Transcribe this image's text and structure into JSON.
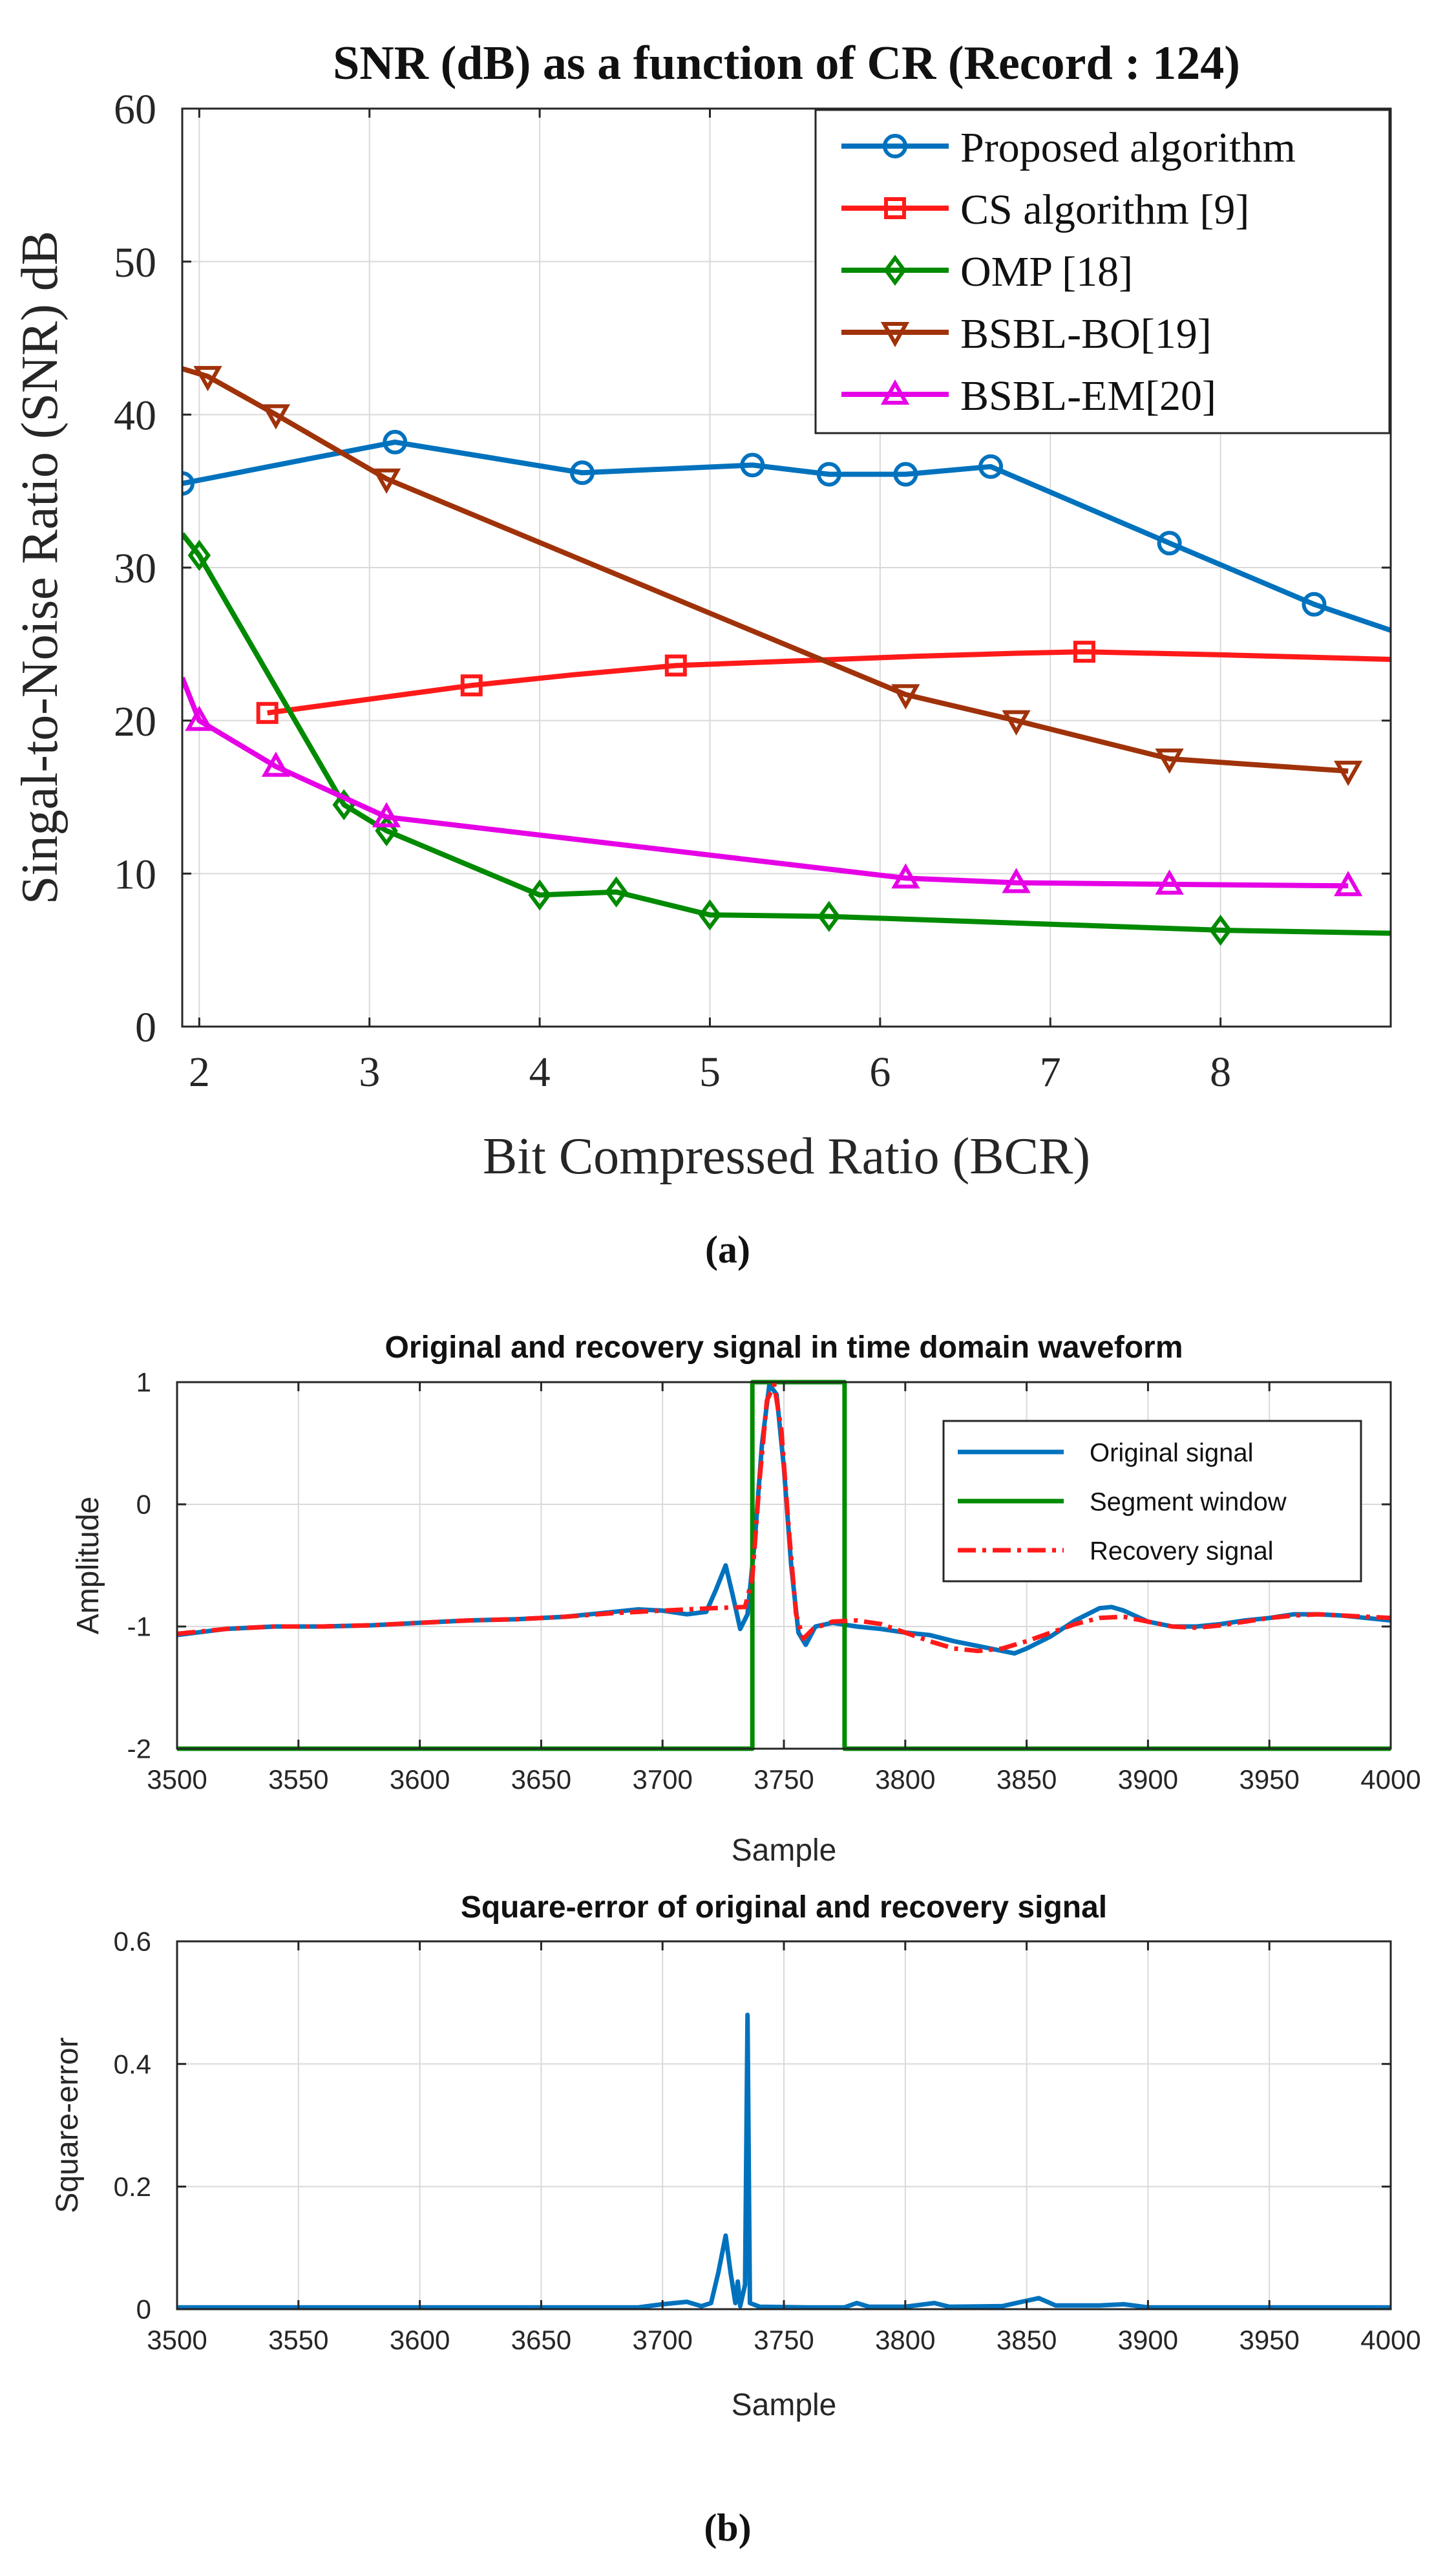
{
  "captions": {
    "a": "(a)",
    "b": "(b)"
  },
  "chart_data": [
    {
      "type": "line",
      "title": "SNR (dB) as a function of CR (Record : 124)",
      "xlabel": "Bit Compressed Ratio (BCR)",
      "ylabel": "Singal-to-Noise Ratio (SNR) dB",
      "xlim": [
        1.9,
        9
      ],
      "ylim": [
        0,
        60
      ],
      "xticks": [
        2,
        3,
        4,
        5,
        6,
        7,
        8
      ],
      "yticks": [
        0,
        10,
        20,
        30,
        40,
        50,
        60
      ],
      "grid": true,
      "legend_position": "top-right",
      "series": [
        {
          "name": "Proposed algorithm",
          "color": "#0072bd",
          "marker": "circle",
          "line": [
            [
              1.9,
              35.5
            ],
            [
              3.15,
              38.2
            ],
            [
              4.25,
              36.2
            ],
            [
              5.25,
              36.7
            ],
            [
              5.7,
              36.1
            ],
            [
              6.15,
              36.1
            ],
            [
              6.65,
              36.6
            ],
            [
              7.7,
              31.6
            ],
            [
              8.55,
              27.6
            ],
            [
              9,
              25.9
            ]
          ],
          "markers": [
            [
              1.9,
              35.5
            ],
            [
              3.15,
              38.2
            ],
            [
              4.25,
              36.2
            ],
            [
              5.25,
              36.7
            ],
            [
              5.7,
              36.1
            ],
            [
              6.15,
              36.1
            ],
            [
              6.65,
              36.6
            ],
            [
              7.7,
              31.6
            ],
            [
              8.55,
              27.6
            ]
          ]
        },
        {
          "name": "CS algorithm [9]",
          "color": "#ff1a1a",
          "marker": "square",
          "line": [
            [
              2.4,
              20.5
            ],
            [
              3.0,
              21.4
            ],
            [
              3.6,
              22.3
            ],
            [
              4.2,
              23.0
            ],
            [
              4.8,
              23.6
            ],
            [
              5.5,
              23.9
            ],
            [
              6.2,
              24.2
            ],
            [
              6.8,
              24.4
            ],
            [
              7.2,
              24.5
            ],
            [
              8.0,
              24.3
            ],
            [
              9,
              24.0
            ]
          ],
          "markers": [
            [
              2.4,
              20.5
            ],
            [
              3.6,
              22.3
            ],
            [
              4.8,
              23.6
            ],
            [
              7.2,
              24.5
            ]
          ]
        },
        {
          "name": "OMP [18]",
          "color": "#008a00",
          "marker": "diamond",
          "line": [
            [
              1.9,
              32.2
            ],
            [
              2.0,
              30.8
            ],
            [
              2.85,
              14.5
            ],
            [
              3.1,
              12.8
            ],
            [
              4.0,
              8.6
            ],
            [
              4.45,
              8.8
            ],
            [
              5.0,
              7.3
            ],
            [
              5.7,
              7.2
            ],
            [
              8.0,
              6.3
            ],
            [
              9,
              6.1
            ]
          ],
          "markers": [
            [
              2.0,
              30.8
            ],
            [
              2.85,
              14.5
            ],
            [
              3.1,
              12.8
            ],
            [
              4.0,
              8.6
            ],
            [
              4.45,
              8.8
            ],
            [
              5.0,
              7.3
            ],
            [
              5.7,
              7.2
            ],
            [
              8.0,
              6.3
            ]
          ]
        },
        {
          "name": "BSBL-BO[19]",
          "color": "#a0320a",
          "marker": "triangle-down",
          "line": [
            [
              1.9,
              43.0
            ],
            [
              2.05,
              42.5
            ],
            [
              2.45,
              40.0
            ],
            [
              3.1,
              35.8
            ],
            [
              6.15,
              21.7
            ],
            [
              6.8,
              20.0
            ],
            [
              7.7,
              17.5
            ],
            [
              8.75,
              16.7
            ]
          ],
          "markers": [
            [
              2.05,
              42.5
            ],
            [
              2.45,
              40.0
            ],
            [
              3.1,
              35.8
            ],
            [
              6.15,
              21.7
            ],
            [
              6.8,
              20.0
            ],
            [
              7.7,
              17.5
            ],
            [
              8.75,
              16.7
            ]
          ]
        },
        {
          "name": "BSBL-EM[20]",
          "color": "#e600e6",
          "marker": "triangle-up",
          "line": [
            [
              1.9,
              22.8
            ],
            [
              2.0,
              20.0
            ],
            [
              2.45,
              17.0
            ],
            [
              3.1,
              13.7
            ],
            [
              6.15,
              9.7
            ],
            [
              6.8,
              9.4
            ],
            [
              7.7,
              9.3
            ],
            [
              8.75,
              9.2
            ]
          ],
          "markers": [
            [
              2.0,
              20.0
            ],
            [
              2.45,
              17.0
            ],
            [
              3.1,
              13.7
            ],
            [
              6.15,
              9.7
            ],
            [
              6.8,
              9.4
            ],
            [
              7.7,
              9.3
            ],
            [
              8.75,
              9.2
            ]
          ]
        }
      ]
    },
    {
      "type": "line",
      "title": "Original and recovery signal in time domain waveform",
      "xlabel": "Sample",
      "ylabel": "Amplitude",
      "xlim": [
        3500,
        4000
      ],
      "ylim": [
        -2,
        1
      ],
      "xticks": [
        3500,
        3550,
        3600,
        3650,
        3700,
        3750,
        3800,
        3850,
        3900,
        3950,
        4000
      ],
      "yticks": [
        -2,
        -1,
        0,
        1
      ],
      "grid": true,
      "legend_position": "top-right",
      "series": [
        {
          "name": "Original signal",
          "color": "#0072bd",
          "style": "solid",
          "points": [
            [
              3500,
              -1.07
            ],
            [
              3520,
              -1.02
            ],
            [
              3540,
              -1.0
            ],
            [
              3560,
              -1.0
            ],
            [
              3580,
              -0.99
            ],
            [
              3600,
              -0.97
            ],
            [
              3620,
              -0.95
            ],
            [
              3640,
              -0.94
            ],
            [
              3660,
              -0.92
            ],
            [
              3680,
              -0.88
            ],
            [
              3690,
              -0.86
            ],
            [
              3700,
              -0.87
            ],
            [
              3710,
              -0.9
            ],
            [
              3718,
              -0.88
            ],
            [
              3722,
              -0.7
            ],
            [
              3726,
              -0.5
            ],
            [
              3729,
              -0.75
            ],
            [
              3732,
              -1.02
            ],
            [
              3735,
              -0.9
            ],
            [
              3738,
              -0.3
            ],
            [
              3741,
              0.5
            ],
            [
              3744,
              0.98
            ],
            [
              3747,
              0.9
            ],
            [
              3750,
              0.3
            ],
            [
              3753,
              -0.5
            ],
            [
              3756,
              -1.05
            ],
            [
              3759,
              -1.15
            ],
            [
              3763,
              -1.0
            ],
            [
              3770,
              -0.97
            ],
            [
              3780,
              -1.0
            ],
            [
              3790,
              -1.02
            ],
            [
              3800,
              -1.05
            ],
            [
              3810,
              -1.07
            ],
            [
              3820,
              -1.12
            ],
            [
              3830,
              -1.16
            ],
            [
              3840,
              -1.2
            ],
            [
              3845,
              -1.22
            ],
            [
              3850,
              -1.18
            ],
            [
              3860,
              -1.08
            ],
            [
              3870,
              -0.95
            ],
            [
              3880,
              -0.85
            ],
            [
              3885,
              -0.84
            ],
            [
              3890,
              -0.87
            ],
            [
              3900,
              -0.96
            ],
            [
              3910,
              -1.0
            ],
            [
              3920,
              -1.0
            ],
            [
              3930,
              -0.98
            ],
            [
              3940,
              -0.95
            ],
            [
              3950,
              -0.93
            ],
            [
              3960,
              -0.9
            ],
            [
              3970,
              -0.9
            ],
            [
              3980,
              -0.91
            ],
            [
              3990,
              -0.93
            ],
            [
              4000,
              -0.95
            ]
          ]
        },
        {
          "name": "Segment window",
          "color": "#008a00",
          "style": "solid",
          "points": [
            [
              3500,
              -2
            ],
            [
              3737,
              -2
            ],
            [
              3737,
              1
            ],
            [
              3775,
              1
            ],
            [
              3775,
              -2
            ],
            [
              4000,
              -2
            ]
          ]
        },
        {
          "name": "Recovery signal",
          "color": "#ff1a1a",
          "style": "dashdot",
          "points": [
            [
              3500,
              -1.06
            ],
            [
              3520,
              -1.02
            ],
            [
              3540,
              -1.0
            ],
            [
              3560,
              -1.0
            ],
            [
              3580,
              -0.99
            ],
            [
              3600,
              -0.97
            ],
            [
              3620,
              -0.95
            ],
            [
              3640,
              -0.94
            ],
            [
              3660,
              -0.92
            ],
            [
              3680,
              -0.89
            ],
            [
              3700,
              -0.87
            ],
            [
              3720,
              -0.85
            ],
            [
              3734,
              -0.84
            ],
            [
              3737,
              -0.6
            ],
            [
              3740,
              0.2
            ],
            [
              3743,
              0.85
            ],
            [
              3746,
              0.98
            ],
            [
              3749,
              0.6
            ],
            [
              3752,
              -0.2
            ],
            [
              3755,
              -0.9
            ],
            [
              3758,
              -1.1
            ],
            [
              3762,
              -1.02
            ],
            [
              3770,
              -0.96
            ],
            [
              3780,
              -0.95
            ],
            [
              3790,
              -0.98
            ],
            [
              3800,
              -1.05
            ],
            [
              3810,
              -1.12
            ],
            [
              3820,
              -1.18
            ],
            [
              3830,
              -1.2
            ],
            [
              3840,
              -1.18
            ],
            [
              3850,
              -1.12
            ],
            [
              3860,
              -1.05
            ],
            [
              3870,
              -0.98
            ],
            [
              3880,
              -0.93
            ],
            [
              3890,
              -0.92
            ],
            [
              3900,
              -0.96
            ],
            [
              3910,
              -1.0
            ],
            [
              3920,
              -1.01
            ],
            [
              3930,
              -0.99
            ],
            [
              3940,
              -0.96
            ],
            [
              3950,
              -0.93
            ],
            [
              3960,
              -0.91
            ],
            [
              3970,
              -0.9
            ],
            [
              3980,
              -0.91
            ],
            [
              3990,
              -0.92
            ],
            [
              4000,
              -0.93
            ]
          ]
        }
      ]
    },
    {
      "type": "line",
      "title": "Square-error of original and recovery signal",
      "xlabel": "Sample",
      "ylabel": "Square-error",
      "xlim": [
        3500,
        4000
      ],
      "ylim": [
        0,
        0.6
      ],
      "xticks": [
        3500,
        3550,
        3600,
        3650,
        3700,
        3750,
        3800,
        3850,
        3900,
        3950,
        4000
      ],
      "yticks": [
        0,
        0.2,
        0.4,
        0.6
      ],
      "grid": true,
      "series": [
        {
          "name": "Square-error",
          "color": "#0072bd",
          "style": "solid",
          "points": [
            [
              3500,
              0.003
            ],
            [
              3600,
              0.003
            ],
            [
              3690,
              0.003
            ],
            [
              3700,
              0.008
            ],
            [
              3710,
              0.012
            ],
            [
              3716,
              0.005
            ],
            [
              3720,
              0.01
            ],
            [
              3723,
              0.06
            ],
            [
              3726,
              0.12
            ],
            [
              3728,
              0.06
            ],
            [
              3730,
              0.01
            ],
            [
              3731,
              0.045
            ],
            [
              3732,
              0.005
            ],
            [
              3734,
              0.04
            ],
            [
              3735,
              0.48
            ],
            [
              3736,
              0.01
            ],
            [
              3740,
              0.004
            ],
            [
              3760,
              0.003
            ],
            [
              3775,
              0.003
            ],
            [
              3780,
              0.01
            ],
            [
              3785,
              0.004
            ],
            [
              3800,
              0.004
            ],
            [
              3812,
              0.01
            ],
            [
              3818,
              0.004
            ],
            [
              3840,
              0.005
            ],
            [
              3848,
              0.012
            ],
            [
              3855,
              0.018
            ],
            [
              3862,
              0.006
            ],
            [
              3880,
              0.006
            ],
            [
              3890,
              0.008
            ],
            [
              3900,
              0.003
            ],
            [
              4000,
              0.003
            ]
          ]
        }
      ]
    }
  ]
}
